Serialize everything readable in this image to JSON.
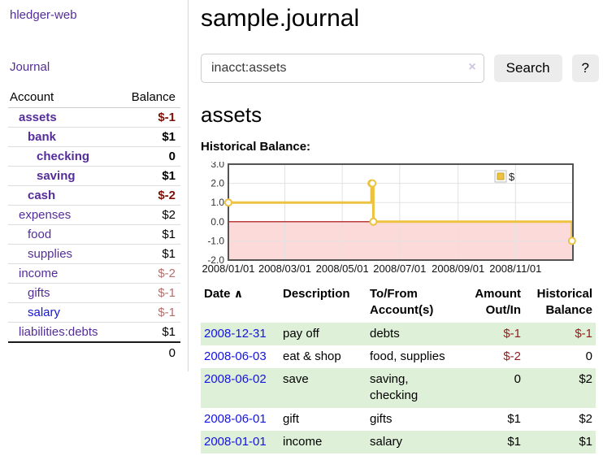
{
  "sidebar": {
    "app_title": "hledger-web",
    "journal_link": "Journal",
    "accounts": {
      "header": {
        "account": "Account",
        "balance": "Balance"
      },
      "rows": [
        {
          "name": "assets",
          "balance": "$-1",
          "indent": 1,
          "bold": true,
          "neg": "strong"
        },
        {
          "name": "bank",
          "balance": "$1",
          "indent": 2,
          "bold": true
        },
        {
          "name": "checking",
          "balance": "0",
          "indent": 3,
          "bold": true
        },
        {
          "name": "saving",
          "balance": "$1",
          "indent": 3,
          "bold": true
        },
        {
          "name": "cash",
          "balance": "$-2",
          "indent": 2,
          "bold": true,
          "neg": "strong"
        },
        {
          "name": "expenses",
          "balance": "$2",
          "indent": 1
        },
        {
          "name": "food",
          "balance": "$1",
          "indent": 2
        },
        {
          "name": "supplies",
          "balance": "$1",
          "indent": 2
        },
        {
          "name": "income",
          "balance": "$-2",
          "indent": 1,
          "neg": "soft"
        },
        {
          "name": "gifts",
          "balance": "$-1",
          "indent": 2,
          "neg": "soft"
        },
        {
          "name": "salary",
          "balance": "$-1",
          "indent": 2,
          "neg": "soft",
          "link": "blue"
        },
        {
          "name": "liabilities:debts",
          "balance": "$1",
          "indent": 1
        }
      ],
      "total": "0"
    }
  },
  "main": {
    "title": "sample.journal",
    "search": {
      "query": "inacct:assets",
      "clear_icon": "×",
      "button_label": "Search",
      "help_label": "?"
    },
    "account_heading": "assets",
    "chart_title": "Historical Balance:"
  },
  "register": {
    "headers": {
      "date": "Date",
      "sort_icon": "∧",
      "description": "Description",
      "accounts": "To/From Account(s)",
      "amount": "Amount Out/In",
      "balance": "Historical Balance"
    },
    "rows": [
      {
        "date": "2008-12-31",
        "description": "pay off",
        "accounts": "debts",
        "amount": "$-1",
        "amount_negative": true,
        "balance": "$-1",
        "balance_negative": true
      },
      {
        "date": "2008-06-03",
        "description": "eat & shop",
        "accounts": "food, supplies",
        "amount": "$-2",
        "amount_negative": true,
        "balance": "0",
        "balance_negative": false
      },
      {
        "date": "2008-06-02",
        "description": "save",
        "accounts": "saving, checking",
        "amount": "0",
        "amount_negative": false,
        "balance": "$2",
        "balance_negative": false
      },
      {
        "date": "2008-06-01",
        "description": "gift",
        "accounts": "gifts",
        "amount": "$1",
        "amount_negative": false,
        "balance": "$2",
        "balance_negative": false
      },
      {
        "date": "2008-01-01",
        "description": "income",
        "accounts": "salary",
        "amount": "$1",
        "amount_negative": false,
        "balance": "$1",
        "balance_negative": false
      }
    ]
  },
  "chart_data": {
    "type": "line",
    "title": "Historical Balance:",
    "legend": {
      "label": "$",
      "position": "top-right"
    },
    "series": [
      {
        "name": "$",
        "color": "#edc240",
        "step": true,
        "points": [
          [
            "2008-01-01",
            1
          ],
          [
            "2008-06-01",
            2
          ],
          [
            "2008-06-02",
            2
          ],
          [
            "2008-06-03",
            0
          ],
          [
            "2008-12-31",
            -1
          ]
        ]
      }
    ],
    "x_ticks": [
      "2008/01/01",
      "2008/03/01",
      "2008/05/01",
      "2008/07/01",
      "2008/09/01",
      "2008/11/01"
    ],
    "y_ticks": [
      "3.0",
      "2.0",
      "1.0",
      "0.0",
      "-1.0",
      "-2.0"
    ],
    "ylim": [
      -2,
      3
    ],
    "x_domain": [
      "2008-01-01",
      "2009-01-01"
    ],
    "grid": true,
    "colors": {
      "negative_region": "#fcdada",
      "zero_line": "#a00000",
      "gridline": "#e2e2e2",
      "plot_border": "#545454",
      "tick_text": "#333333"
    }
  },
  "colors": {
    "link_purple": "#552d9a",
    "link_blue": "#1414e0",
    "negative": "#8f1d1d",
    "negative_strong": "#7d1007",
    "negative_soft": "#b66e6e",
    "row_stripe_green": "#dff0d8",
    "button_bg": "#ececec"
  }
}
